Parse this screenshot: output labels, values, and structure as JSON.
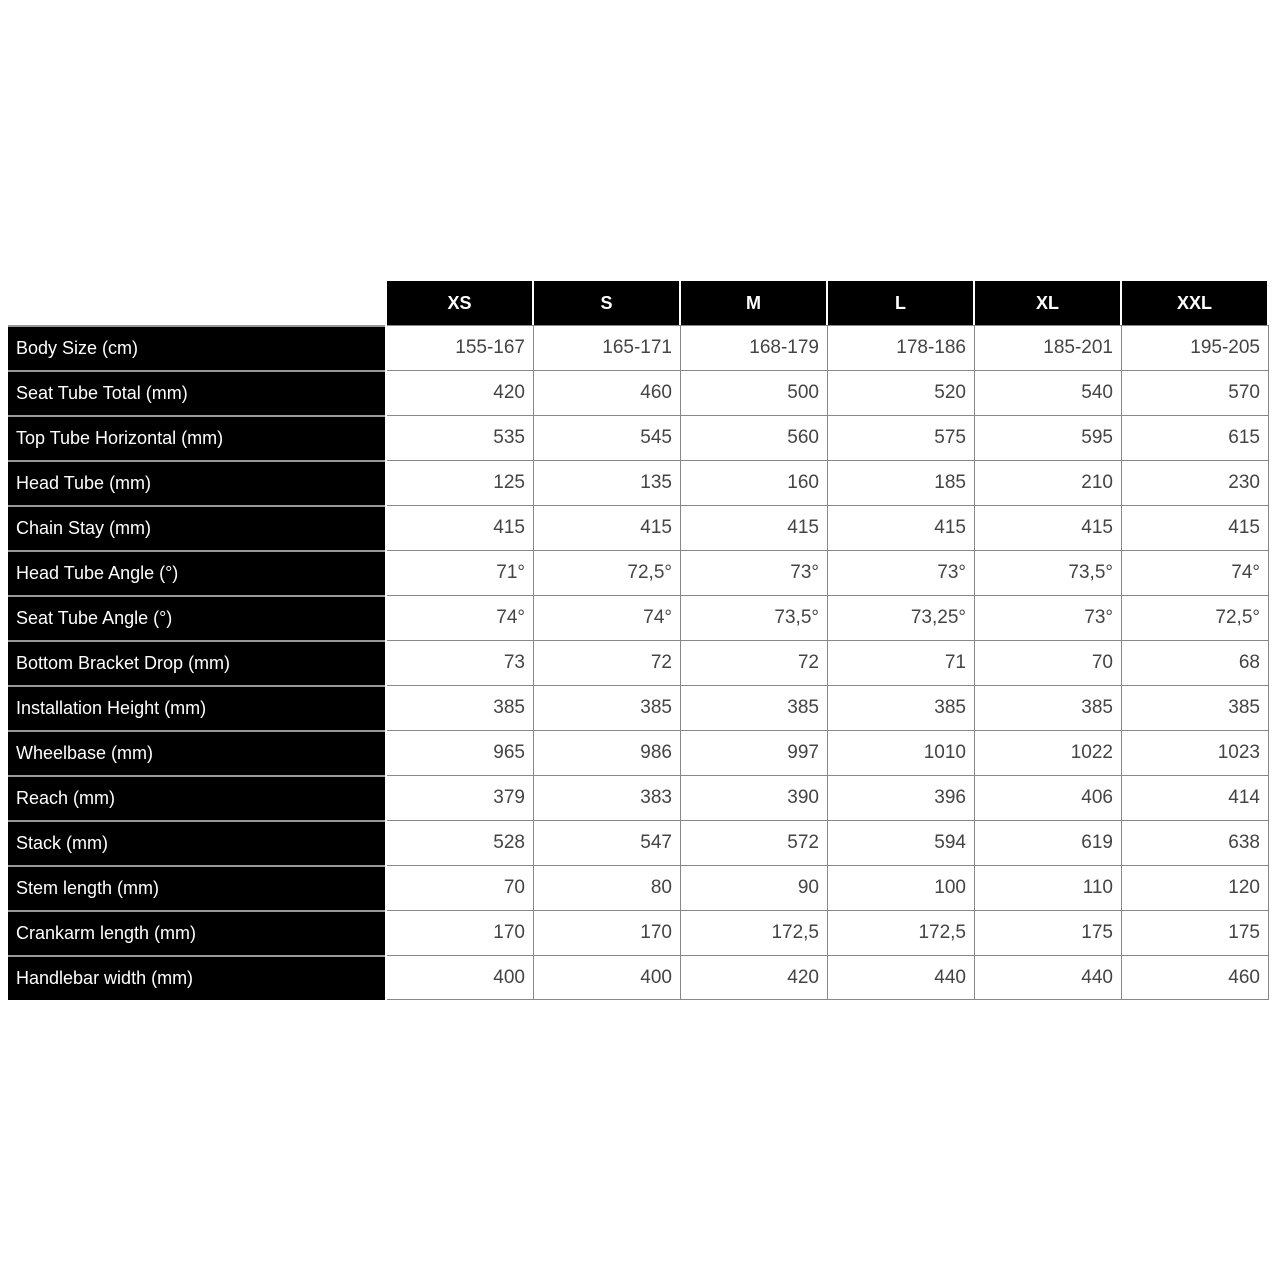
{
  "sizes": [
    "XS",
    "S",
    "M",
    "L",
    "XL",
    "XXL"
  ],
  "rows": [
    {
      "label": "Body Size (cm)",
      "values": [
        "155-167",
        "165-171",
        "168-179",
        "178-186",
        "185-201",
        "195-205"
      ]
    },
    {
      "label": "Seat Tube Total (mm)",
      "values": [
        "420",
        "460",
        "500",
        "520",
        "540",
        "570"
      ]
    },
    {
      "label": "Top Tube Horizontal (mm)",
      "values": [
        "535",
        "545",
        "560",
        "575",
        "595",
        "615"
      ]
    },
    {
      "label": "Head Tube (mm)",
      "values": [
        "125",
        "135",
        "160",
        "185",
        "210",
        "230"
      ]
    },
    {
      "label": "Chain Stay (mm)",
      "values": [
        "415",
        "415",
        "415",
        "415",
        "415",
        "415"
      ]
    },
    {
      "label": "Head Tube Angle (°)",
      "values": [
        "71°",
        "72,5°",
        "73°",
        "73°",
        "73,5°",
        "74°"
      ]
    },
    {
      "label": "Seat Tube Angle (°)",
      "values": [
        "74°",
        "74°",
        "73,5°",
        "73,25°",
        "73°",
        "72,5°"
      ]
    },
    {
      "label": "Bottom Bracket Drop (mm)",
      "values": [
        "73",
        "72",
        "72",
        "71",
        "70",
        "68"
      ]
    },
    {
      "label": "Installation Height (mm)",
      "values": [
        "385",
        "385",
        "385",
        "385",
        "385",
        "385"
      ]
    },
    {
      "label": "Wheelbase (mm)",
      "values": [
        "965",
        "986",
        "997",
        "1010",
        "1022",
        "1023"
      ]
    },
    {
      "label": "Reach (mm)",
      "values": [
        "379",
        "383",
        "390",
        "396",
        "406",
        "414"
      ]
    },
    {
      "label": "Stack (mm)",
      "values": [
        "528",
        "547",
        "572",
        "594",
        "619",
        "638"
      ]
    },
    {
      "label": "Stem length (mm)",
      "values": [
        "70",
        "80",
        "90",
        "100",
        "110",
        "120"
      ]
    },
    {
      "label": "Crankarm length (mm)",
      "values": [
        "170",
        "170",
        "172,5",
        "172,5",
        "175",
        "175"
      ]
    },
    {
      "label": "Handlebar width (mm)",
      "values": [
        "400",
        "400",
        "420",
        "440",
        "440",
        "460"
      ]
    }
  ]
}
